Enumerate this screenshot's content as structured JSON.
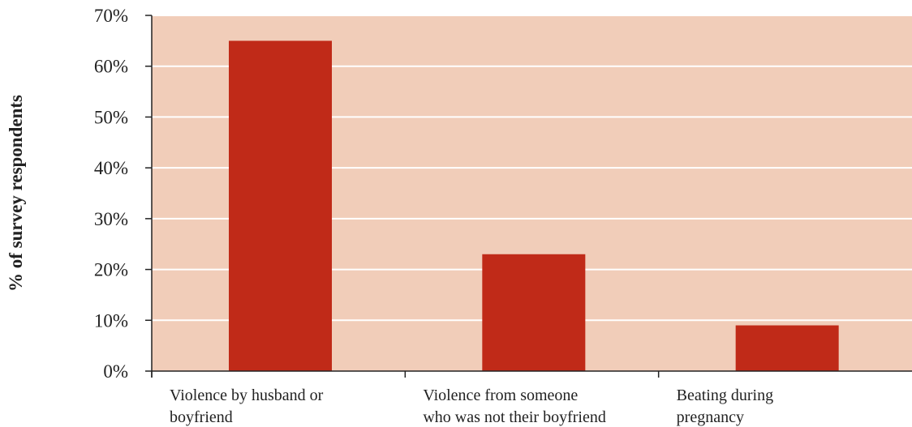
{
  "chart_data": {
    "type": "bar",
    "title": "",
    "xlabel": "",
    "ylabel": "% of survey respondents",
    "ylim": [
      0,
      70
    ],
    "y_ticks": [
      0,
      10,
      20,
      30,
      40,
      50,
      60,
      70
    ],
    "y_tick_labels": [
      "0%",
      "10%",
      "20%",
      "30%",
      "40%",
      "50%",
      "60%",
      "70%"
    ],
    "categories": [
      [
        "Violence by husband or",
        "boyfriend"
      ],
      [
        "Violence from someone",
        "who was not their boyfriend"
      ],
      [
        "Beating during",
        "pregnancy"
      ]
    ],
    "values": [
      65,
      23,
      9
    ],
    "grid": true,
    "legend": "none",
    "colors": {
      "bar": "#c02a18",
      "plot_background": "#f1cdb9",
      "gridline": "#ffffff",
      "axis": "#222222"
    }
  }
}
